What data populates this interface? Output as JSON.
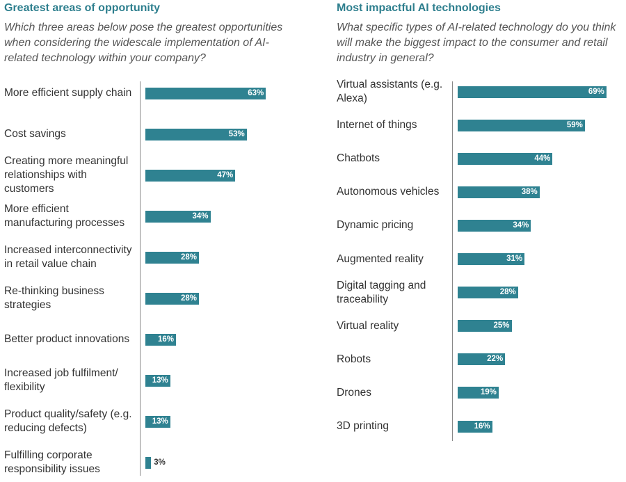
{
  "chart_data": [
    {
      "type": "bar",
      "orientation": "horizontal",
      "title": "Greatest areas of opportunity",
      "subtitle": "Which three areas below pose the greatest opportunities when considering the widescale implementation of AI-related technology within your company?",
      "categories": [
        "More efficient supply chain",
        "Cost savings",
        "Creating more meaningful relationships with customers",
        "More efficient manufacturing processes",
        "Increased interconnectivity in retail value chain",
        "Re-thinking business strategies",
        "Better product innovations",
        "Increased job fulfilment/ flexibility",
        "Product quality/safety (e.g. reducing defects)",
        "Fulfilling corporate responsibility issues"
      ],
      "values": [
        63,
        53,
        47,
        34,
        28,
        28,
        16,
        13,
        13,
        3
      ],
      "value_labels": [
        "63%",
        "53%",
        "47%",
        "34%",
        "28%",
        "28%",
        "16%",
        "13%",
        "13%",
        "3%"
      ],
      "color": "#2f8291"
    },
    {
      "type": "bar",
      "orientation": "horizontal",
      "title": "Most impactful AI technologies",
      "subtitle": "What specific types of AI-related technology do you think will make the biggest impact to the consumer and retail industry in general?",
      "categories": [
        "Virtual assistants (e.g. Alexa)",
        "Internet of things",
        "Chatbots",
        "Autonomous vehicles",
        "Dynamic pricing",
        "Augmented reality",
        "Digital tagging and traceability",
        "Virtual reality",
        "Robots",
        "Drones",
        "3D printing"
      ],
      "values": [
        69,
        59,
        44,
        38,
        34,
        31,
        28,
        25,
        22,
        19,
        16
      ],
      "value_labels": [
        "69%",
        "59%",
        "44%",
        "38%",
        "34%",
        "31%",
        "28%",
        "25%",
        "22%",
        "19%",
        "16%"
      ],
      "color": "#2f8291"
    }
  ]
}
